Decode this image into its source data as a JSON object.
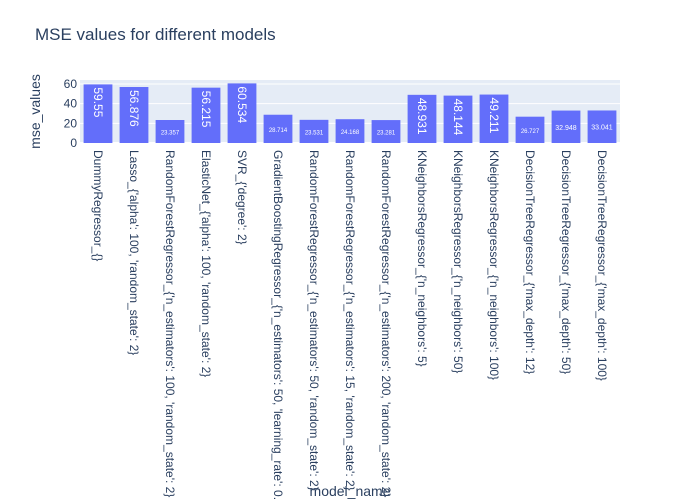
{
  "chart_data": {
    "type": "bar",
    "title": "MSE values for different models",
    "xlabel": "model_name",
    "ylabel": "mse_values",
    "ylim": [
      0,
      64
    ],
    "yticks": [
      0,
      20,
      40,
      60
    ],
    "grid": true,
    "bar_color": "#636efa",
    "plot_bg": "#e5ecf6",
    "categories": [
      "DummyRegressor_{}",
      "Lasso_{'alpha': 100, 'random_state': 2}",
      "RandomForestRegressor_{'n_estimators': 100, 'random_state': 2}",
      "ElasticNet_{'alpha': 100, 'random_state': 2}",
      "SVR_{'degree': 2}",
      "GradientBoostingRegressor_{'n_estimators': 50, 'learning_rate': 0.1}",
      "RandomForestRegressor_{'n_estimators': 50, 'random_state': 2}",
      "RandomForestRegressor_{'n_estimators': 15, 'random_state': 2}",
      "RandomForestRegressor_{'n_estimators': 200, 'random_state': 2}",
      "KNeighborsRegressor_{'n_neighbors': 5}",
      "KNeighborsRegressor_{'n_neighbors': 50}",
      "KNeighborsRegressor_{'n_neighbors': 100}",
      "DecisionTreeRegressor_{'max_depth': 12}",
      "DecisionTreeRegressor_{'max_depth': 50}",
      "DecisionTreeRegressor_{'max_depth': 100}"
    ],
    "values": [
      59.55,
      56.876,
      23.357,
      56.215,
      60.534,
      28.714,
      23.531,
      24.168,
      23.281,
      48.931,
      48.144,
      49.211,
      26.727,
      32.948,
      33.041
    ],
    "value_labels": [
      "59.55",
      "56.876",
      "23.357",
      "56.215",
      "60.534",
      "28.714",
      "23.531",
      "24.168",
      "23.281",
      "48.931",
      "48.144",
      "49.211",
      "26.727",
      "32.948",
      "33.041"
    ]
  }
}
